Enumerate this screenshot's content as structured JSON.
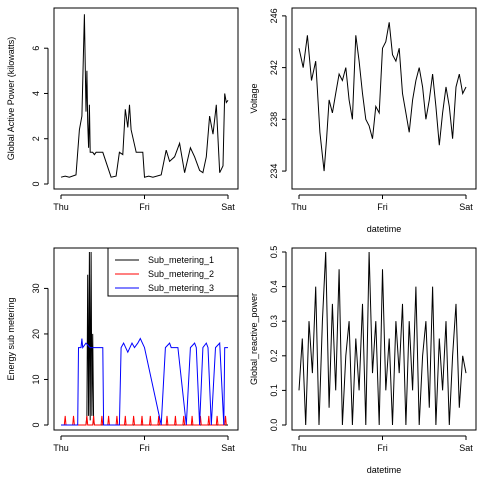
{
  "colors": {
    "black": "#000000",
    "red": "#ff0000",
    "blue": "#0000ff"
  },
  "chart_data": [
    {
      "id": "p1",
      "type": "line",
      "title": "",
      "xlabel": "",
      "ylabel": "Global Active Power (kilowatts)",
      "x_ticks": [
        "Thu",
        "Fri",
        "Sat"
      ],
      "x_tick_values": [
        0,
        1,
        2
      ],
      "xlim": [
        0,
        2
      ],
      "ylim": [
        0,
        7.6
      ],
      "y_ticks": [
        0,
        2,
        4,
        6
      ],
      "series": [
        {
          "color": "#000000",
          "x": [
            0,
            0.05,
            0.1,
            0.18,
            0.22,
            0.25,
            0.28,
            0.3,
            0.31,
            0.32,
            0.33,
            0.34,
            0.35,
            0.38,
            0.4,
            0.42,
            0.5,
            0.6,
            0.66,
            0.7,
            0.74,
            0.77,
            0.8,
            0.82,
            0.84,
            0.9,
            0.98,
            1.0,
            1.05,
            1.1,
            1.2,
            1.26,
            1.3,
            1.36,
            1.42,
            1.48,
            1.55,
            1.6,
            1.66,
            1.7,
            1.74,
            1.78,
            1.82,
            1.86,
            1.9,
            1.94,
            1.96,
            1.98,
            2.0
          ],
          "y": [
            0.3,
            0.35,
            0.3,
            0.4,
            2.4,
            3.0,
            7.5,
            3.2,
            5.0,
            2.7,
            1.6,
            3.5,
            1.4,
            1.4,
            1.3,
            1.4,
            1.4,
            0.3,
            0.35,
            1.4,
            1.3,
            3.3,
            2.5,
            3.5,
            2.4,
            1.4,
            1.4,
            0.3,
            0.35,
            0.3,
            0.4,
            1.5,
            1.0,
            1.2,
            1.8,
            0.5,
            1.6,
            1.2,
            0.6,
            0.5,
            1.2,
            3.0,
            2.2,
            3.5,
            0.5,
            0.8,
            4.0,
            3.6,
            3.7
          ]
        }
      ]
    },
    {
      "id": "p2",
      "type": "line",
      "title": "",
      "xlabel": "datetime",
      "ylabel": "Voltage",
      "x_ticks": [
        "Thu",
        "Fri",
        "Sat"
      ],
      "x_tick_values": [
        0,
        1,
        2
      ],
      "xlim": [
        0,
        2
      ],
      "ylim": [
        233,
        246.3
      ],
      "y_ticks": [
        234,
        238,
        242,
        246
      ],
      "series": [
        {
          "color": "#000000",
          "x": [
            0,
            0.05,
            0.1,
            0.15,
            0.2,
            0.25,
            0.3,
            0.33,
            0.36,
            0.4,
            0.44,
            0.48,
            0.52,
            0.56,
            0.6,
            0.64,
            0.68,
            0.72,
            0.76,
            0.8,
            0.84,
            0.88,
            0.92,
            0.96,
            1.0,
            1.04,
            1.08,
            1.12,
            1.16,
            1.2,
            1.24,
            1.28,
            1.32,
            1.36,
            1.4,
            1.44,
            1.48,
            1.52,
            1.56,
            1.6,
            1.64,
            1.68,
            1.72,
            1.76,
            1.8,
            1.84,
            1.88,
            1.92,
            1.96,
            2.0
          ],
          "y": [
            243.5,
            242.0,
            244.5,
            241.0,
            242.5,
            237.0,
            234.0,
            236.5,
            239.5,
            238.5,
            240.0,
            241.5,
            241.0,
            242.0,
            239.5,
            238.0,
            244.5,
            242.5,
            240.0,
            238.0,
            237.5,
            236.5,
            239.0,
            238.5,
            243.5,
            244.0,
            245.5,
            243.0,
            242.5,
            243.5,
            240.0,
            238.5,
            237.0,
            239.5,
            241.0,
            242.0,
            240.5,
            238.0,
            239.5,
            241.5,
            239.0,
            236.0,
            238.5,
            240.5,
            239.0,
            236.5,
            240.5,
            241.5,
            240.0,
            240.5
          ]
        }
      ]
    },
    {
      "id": "p3",
      "type": "line",
      "title": "",
      "xlabel": "",
      "ylabel": "Energy sub metering",
      "x_ticks": [
        "Thu",
        "Fri",
        "Sat"
      ],
      "x_tick_values": [
        0,
        1,
        2
      ],
      "xlim": [
        0,
        2
      ],
      "ylim": [
        0,
        38
      ],
      "y_ticks": [
        0,
        10,
        20,
        30
      ],
      "legend": {
        "position": "top-right",
        "entries": [
          "Sub_metering_1",
          "Sub_metering_2",
          "Sub_metering_3"
        ]
      },
      "series": [
        {
          "name": "Sub_metering_1",
          "color": "#000000",
          "x": [
            0,
            0.3,
            0.31,
            0.32,
            0.33,
            0.34,
            0.35,
            0.36,
            0.37,
            0.38,
            0.39,
            0.4,
            2.0
          ],
          "y": [
            0,
            0,
            2,
            33,
            2,
            38,
            1,
            38,
            2,
            20,
            1,
            0,
            0
          ]
        },
        {
          "name": "Sub_metering_2",
          "color": "#ff0000",
          "x": [
            0.04,
            0.05,
            0.06,
            0.14,
            0.15,
            0.16,
            0.3,
            0.31,
            0.32,
            0.38,
            0.39,
            0.4,
            0.48,
            0.49,
            0.5,
            0.56,
            0.57,
            0.58,
            0.66,
            0.67,
            0.68,
            0.76,
            0.77,
            0.78,
            0.86,
            0.87,
            0.88,
            0.96,
            0.97,
            0.98,
            1.06,
            1.07,
            1.08,
            1.16,
            1.17,
            1.18,
            1.26,
            1.27,
            1.28,
            1.36,
            1.37,
            1.38,
            1.46,
            1.47,
            1.48,
            1.56,
            1.57,
            1.58,
            1.66,
            1.67,
            1.68,
            1.76,
            1.77,
            1.78,
            1.86,
            1.87,
            1.88,
            1.96,
            1.97,
            1.98
          ],
          "y": [
            0,
            2,
            0,
            0,
            2,
            0,
            0,
            2,
            0,
            0,
            2,
            0,
            0,
            2,
            0,
            0,
            2,
            0,
            0,
            2,
            0,
            0,
            2,
            0,
            0,
            2,
            0,
            0,
            2,
            0,
            0,
            2,
            0,
            0,
            2,
            0,
            0,
            2,
            0,
            0,
            2,
            0,
            0,
            2,
            0,
            0,
            2,
            0,
            0,
            2,
            0,
            0,
            2,
            0,
            0,
            2,
            0,
            0,
            2,
            0
          ]
        },
        {
          "name": "Sub_metering_3",
          "color": "#0000ff",
          "x": [
            0,
            0.2,
            0.21,
            0.24,
            0.25,
            0.26,
            0.3,
            0.35,
            0.4,
            0.5,
            0.51,
            0.7,
            0.72,
            0.75,
            0.8,
            0.85,
            0.88,
            0.92,
            0.95,
            1.0,
            1.2,
            1.25,
            1.3,
            1.32,
            1.4,
            1.5,
            1.55,
            1.6,
            1.62,
            1.66,
            1.7,
            1.74,
            1.76,
            1.8,
            1.85,
            1.9,
            1.95,
            1.96,
            2.0
          ],
          "y": [
            0,
            0,
            17,
            17,
            19,
            17,
            18,
            17,
            17,
            17,
            0,
            0,
            17,
            18,
            16,
            18,
            17,
            18,
            19,
            17,
            0,
            17,
            18,
            17,
            17,
            0,
            17,
            18,
            17,
            0,
            17,
            18,
            17,
            0,
            17,
            18,
            0,
            17,
            17
          ]
        }
      ]
    },
    {
      "id": "p4",
      "type": "line",
      "title": "",
      "xlabel": "datetime",
      "ylabel": "Global_reactive_power",
      "x_ticks": [
        "Thu",
        "Fri",
        "Sat"
      ],
      "x_tick_values": [
        0,
        1,
        2
      ],
      "xlim": [
        0,
        2
      ],
      "ylim": [
        0,
        0.5
      ],
      "y_ticks": [
        0.0,
        0.1,
        0.2,
        0.3,
        0.4,
        0.5
      ],
      "y_tick_labels": [
        "0.0",
        "0.1",
        "0.2",
        "0.3",
        "0.4",
        "0.5"
      ],
      "series": [
        {
          "color": "#000000",
          "x": [
            0,
            0.04,
            0.08,
            0.12,
            0.16,
            0.2,
            0.24,
            0.28,
            0.32,
            0.36,
            0.4,
            0.44,
            0.48,
            0.52,
            0.56,
            0.6,
            0.64,
            0.68,
            0.72,
            0.76,
            0.8,
            0.84,
            0.88,
            0.92,
            0.96,
            1.0,
            1.04,
            1.08,
            1.12,
            1.16,
            1.2,
            1.24,
            1.28,
            1.32,
            1.36,
            1.4,
            1.44,
            1.48,
            1.52,
            1.56,
            1.6,
            1.64,
            1.68,
            1.72,
            1.76,
            1.8,
            1.84,
            1.88,
            1.92,
            1.96,
            2.0
          ],
          "y": [
            0.1,
            0.25,
            0.0,
            0.3,
            0.15,
            0.4,
            0.0,
            0.3,
            0.5,
            0.05,
            0.35,
            0.1,
            0.45,
            0.0,
            0.2,
            0.3,
            0.0,
            0.25,
            0.1,
            0.35,
            0.0,
            0.5,
            0.15,
            0.3,
            0.0,
            0.45,
            0.1,
            0.25,
            0.0,
            0.3,
            0.15,
            0.35,
            0.0,
            0.3,
            0.1,
            0.4,
            0.0,
            0.2,
            0.3,
            0.05,
            0.4,
            0.0,
            0.25,
            0.1,
            0.3,
            0.0,
            0.2,
            0.35,
            0.05,
            0.2,
            0.15
          ]
        }
      ]
    }
  ]
}
